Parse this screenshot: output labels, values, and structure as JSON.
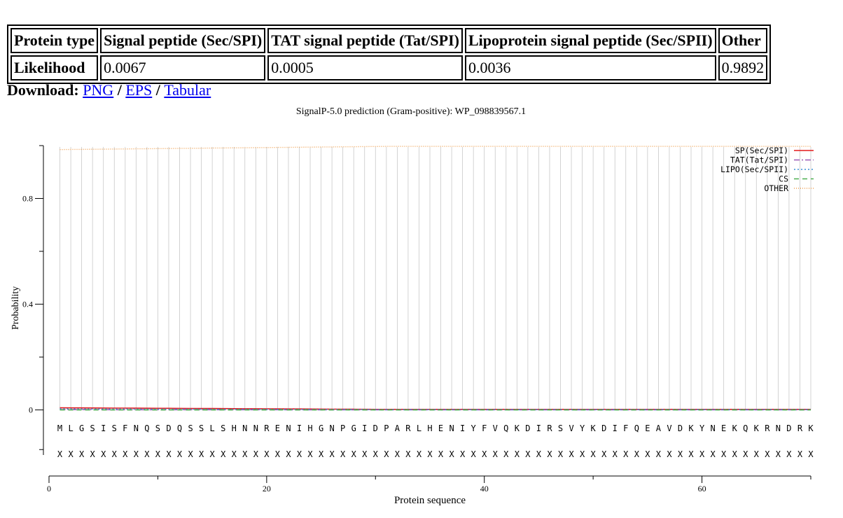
{
  "table": {
    "header": [
      "Protein type",
      "Signal peptide (Sec/SPI)",
      "TAT signal peptide (Tat/SPI)",
      "Lipoprotein signal peptide (Sec/SPII)",
      "Other"
    ],
    "row": [
      "Likelihood",
      "0.0067",
      "0.0005",
      "0.0036",
      "0.9892"
    ]
  },
  "download": {
    "label": "Download:",
    "sep1": " / ",
    "sep2": " / ",
    "links": [
      "PNG",
      "EPS",
      "Tabular"
    ]
  },
  "chart_data": {
    "type": "line",
    "title": "SignalP-5.0 prediction (Gram-positive):  WP_098839567.1",
    "xlabel": "Protein sequence",
    "ylabel": "Probability",
    "xlim": [
      0,
      70
    ],
    "ylim": [
      -0.25,
      1.0
    ],
    "x_ticks": [
      0,
      20,
      40,
      60
    ],
    "y_ticks": [
      0,
      0.4,
      0.8
    ],
    "y_ticks_labels": [
      "0",
      "0.4",
      "0.8"
    ],
    "grid": "vertical lines at each residue",
    "legend_position": "top-right",
    "sequence": [
      "M",
      "L",
      "G",
      "S",
      "I",
      "S",
      "F",
      "N",
      "Q",
      "S",
      "D",
      "Q",
      "S",
      "S",
      "L",
      "S",
      "H",
      "N",
      "N",
      "R",
      "E",
      "N",
      "I",
      "H",
      "G",
      "N",
      "P",
      "G",
      "I",
      "D",
      "P",
      "A",
      "R",
      "L",
      "H",
      "E",
      "N",
      "I",
      "Y",
      "F",
      "V",
      "Q",
      "K",
      "D",
      "I",
      "R",
      "S",
      "V",
      "Y",
      "K",
      "D",
      "I",
      "F",
      "Q",
      "E",
      "A",
      "V",
      "D",
      "K",
      "Y",
      "N",
      "E",
      "K",
      "Q",
      "K",
      "R",
      "N",
      "D",
      "R",
      "K"
    ],
    "cs_marker": "X",
    "series": [
      {
        "name": "SP(Sec/SPI)",
        "color": "#e31a1c",
        "dash": "",
        "start": 0.008,
        "end": 0.002
      },
      {
        "name": "TAT(Tat/SPI)",
        "color": "#9b59b6",
        "dash": "8,3,2,3",
        "start": 0.001,
        "end": 0.0005
      },
      {
        "name": "LIPO(Sec/SPII)",
        "color": "#3a8fd6",
        "dash": "2,3",
        "start": 0.004,
        "end": 0.001
      },
      {
        "name": "CS",
        "color": "#4caf50",
        "dash": "7,5",
        "start": 0.0,
        "end": 0.0
      },
      {
        "name": "OTHER",
        "color": "#f0a050",
        "dash": "1,2",
        "start": 0.985,
        "end": 0.997
      }
    ]
  }
}
